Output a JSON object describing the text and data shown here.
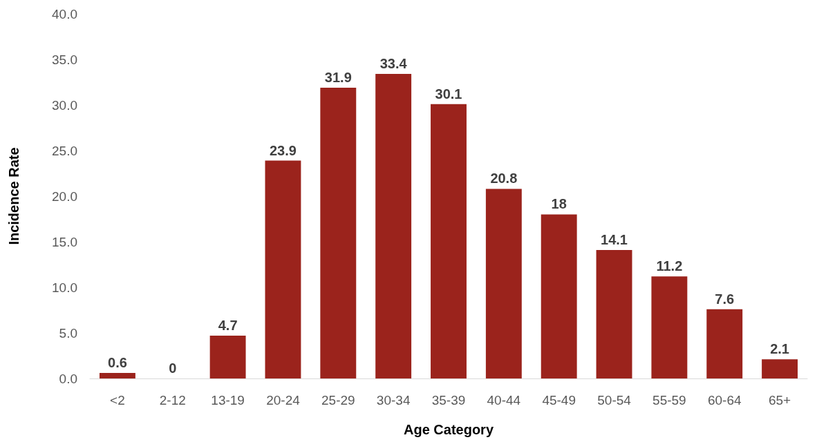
{
  "chart_data": {
    "type": "bar",
    "xlabel": "Age Category",
    "ylabel": "Incidence Rate",
    "categories": [
      "<2",
      "2-12",
      "13-19",
      "20-24",
      "25-29",
      "30-34",
      "35-39",
      "40-44",
      "45-49",
      "50-54",
      "55-59",
      "60-64",
      "65+"
    ],
    "values": [
      0.6,
      0,
      4.7,
      23.9,
      31.9,
      33.4,
      30.1,
      20.8,
      18,
      14.1,
      11.2,
      7.6,
      2.1
    ],
    "color": "#9b231c",
    "data_labels": true,
    "grid": false,
    "ylim": [
      0,
      40
    ],
    "yticks": [
      {
        "value": 0,
        "label": "0.0"
      },
      {
        "value": 5,
        "label": "5.0"
      },
      {
        "value": 10,
        "label": "10.0"
      },
      {
        "value": 15,
        "label": "15.0"
      },
      {
        "value": 20,
        "label": "20.0"
      },
      {
        "value": 25,
        "label": "25.0"
      },
      {
        "value": 30,
        "label": "30.0"
      },
      {
        "value": 35,
        "label": "35.0"
      },
      {
        "value": 40,
        "label": "40.0"
      }
    ]
  }
}
